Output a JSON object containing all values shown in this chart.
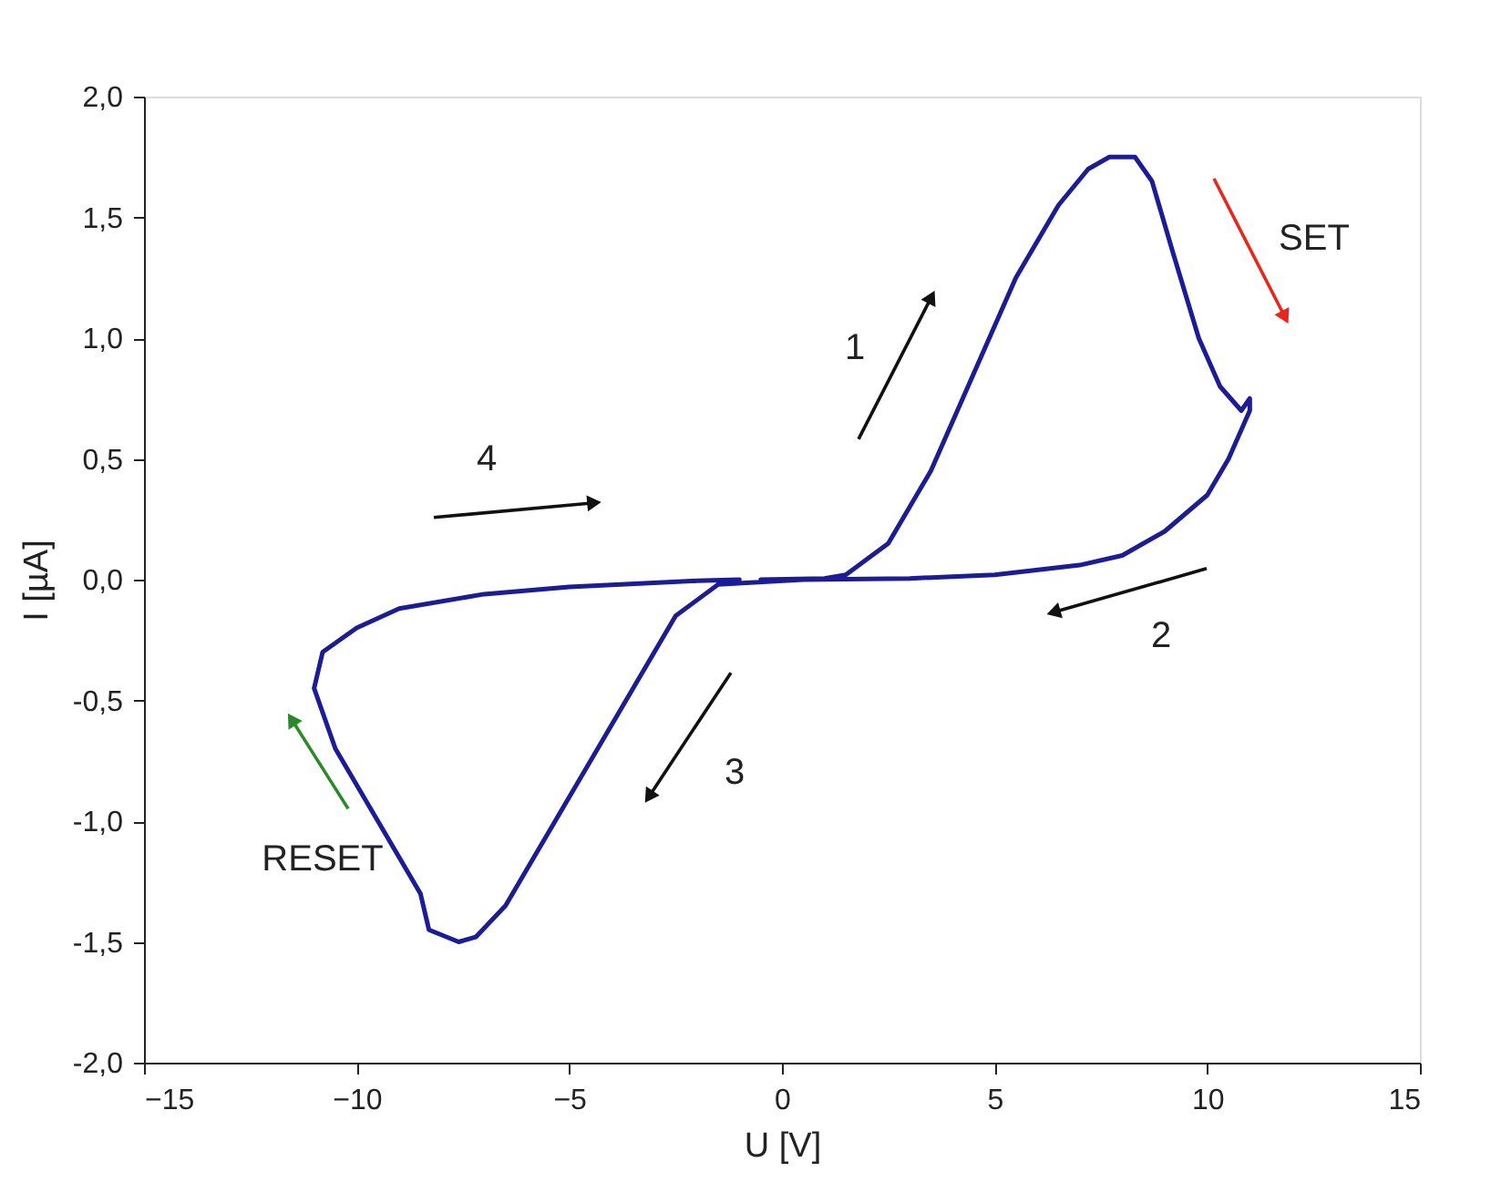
{
  "chart_data": {
    "type": "line",
    "xlabel": "U [V]",
    "ylabel": "I [µA]",
    "xlim": [
      -15,
      15
    ],
    "xticks": [
      -15,
      -10,
      -5,
      0,
      5,
      10,
      15
    ],
    "ylim": [
      -2.0,
      2.0
    ],
    "yticks": [
      {
        "value": -2.0,
        "label": "-2,0"
      },
      {
        "value": -1.5,
        "label": "-1,5"
      },
      {
        "value": -1.0,
        "label": "-1,0"
      },
      {
        "value": -0.5,
        "label": "-0,5"
      },
      {
        "value": 0.0,
        "label": "0,0"
      },
      {
        "value": 0.5,
        "label": "0,5"
      },
      {
        "value": 1.0,
        "label": "1,0"
      },
      {
        "value": 1.5,
        "label": "1,5"
      },
      {
        "value": 2.0,
        "label": "2,0"
      }
    ],
    "grid": false,
    "legend": false,
    "marker": "none",
    "line_style": "solid",
    "series": [
      {
        "color": "#1c1c96",
        "x": [
          -0.5,
          1,
          1.5,
          2.5,
          3.5,
          4.5,
          5.5,
          6.5,
          7.2,
          7.7,
          8.3,
          8.7,
          9.2,
          9.8,
          10.3,
          10.8,
          11,
          11,
          10.5,
          10,
          9,
          8,
          7,
          5,
          3,
          0.5,
          -1.5,
          -2.5,
          -3.5,
          -4.5,
          -5.5,
          -6.5,
          -7.2,
          -7.6,
          -8.3,
          -8.5,
          -9.5,
          -10.5,
          -11,
          -10.8,
          -10,
          -9,
          -7,
          -5,
          -2,
          -1
        ],
        "values": [
          0,
          0.005,
          0.02,
          0.15,
          0.45,
          0.85,
          1.25,
          1.55,
          1.7,
          1.75,
          1.75,
          1.65,
          1.35,
          1.0,
          0.8,
          0.7,
          0.75,
          0.7,
          0.5,
          0.35,
          0.2,
          0.1,
          0.06,
          0.02,
          0.005,
          0,
          -0.02,
          -0.15,
          -0.45,
          -0.75,
          -1.05,
          -1.35,
          -1.48,
          -1.5,
          -1.45,
          -1.3,
          -1.0,
          -0.7,
          -0.45,
          -0.3,
          -0.2,
          -0.12,
          -0.06,
          -0.03,
          -0.005,
          0
        ]
      }
    ],
    "annotations": [
      "1",
      "2",
      "3",
      "4",
      "SET",
      "RESET"
    ]
  }
}
